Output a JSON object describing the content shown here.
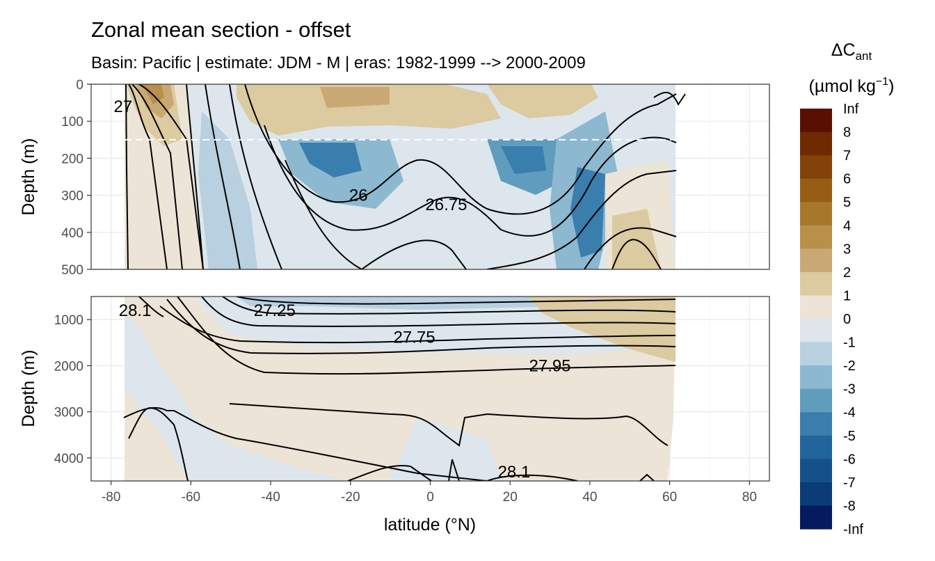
{
  "chart_data": {
    "type": "heatmap",
    "title": "Zonal mean section - offset",
    "subtitle": "Basin: Pacific | estimate: JDM - M | eras: 1982-1999 --> 2000-2009",
    "xlabel": "latitude (°N)",
    "ylabel": "Depth (m)",
    "xlim": [
      -85,
      85
    ],
    "x_ticks": [
      -80,
      -60,
      -40,
      -20,
      0,
      20,
      40,
      60,
      80
    ],
    "panels": [
      {
        "name": "upper",
        "ylim": [
          0,
          500
        ],
        "y_ticks": [
          0,
          100,
          200,
          300,
          400,
          500
        ],
        "reference_line_depth": 150,
        "contour_labels": [
          {
            "text": "26",
            "lat": -18,
            "depth": 300
          },
          {
            "text": "26.75",
            "lat": 4,
            "depth": 325
          },
          {
            "text": "27",
            "lat": -77,
            "depth": 60
          }
        ]
      },
      {
        "name": "lower",
        "ylim": [
          500,
          4500
        ],
        "y_ticks": [
          1000,
          2000,
          3000,
          4000
        ],
        "contour_labels": [
          {
            "text": "28.1",
            "lat": -74,
            "depth": 800
          },
          {
            "text": "27.25",
            "lat": -39,
            "depth": 800
          },
          {
            "text": "27.75",
            "lat": -4,
            "depth": 1380
          },
          {
            "text": "27.95",
            "lat": 30,
            "depth": 2000
          },
          {
            "text": "28.1",
            "lat": 21,
            "depth": 4300
          }
        ]
      }
    ],
    "legend": {
      "title": "ΔC",
      "title_sub": "ant",
      "unit_pre": "(µmol kg",
      "unit_sup": "−1",
      "unit_post": ")",
      "labels": [
        "Inf",
        "8",
        "7",
        "6",
        "5",
        "4",
        "3",
        "2",
        "1",
        "0",
        "-1",
        "-2",
        "-3",
        "-4",
        "-5",
        "-6",
        "-7",
        "-8",
        "-Inf"
      ],
      "colors": [
        "#5a1000",
        "#6e2a00",
        "#82420a",
        "#965e14",
        "#a8782a",
        "#b8904a",
        "#c9a874",
        "#dccaa0",
        "#ece4d6",
        "#dce6ec",
        "#b8d0e0",
        "#8cb8d0",
        "#5f9cbe",
        "#3a7eae",
        "#21659c",
        "#14508a",
        "#0a3c78",
        "#041c5e"
      ]
    },
    "field_levels": {
      "-4": "#3a7eae",
      "-3": "#5f9cbe",
      "-2": "#8cb8d0",
      "-1": "#b8d0e0",
      "0": "#dce6ec",
      "1": "#ece4d6",
      "2": "#dccaa0",
      "3": "#c9a874",
      "4": "#b8904a",
      "5": "#a8782a"
    }
  }
}
